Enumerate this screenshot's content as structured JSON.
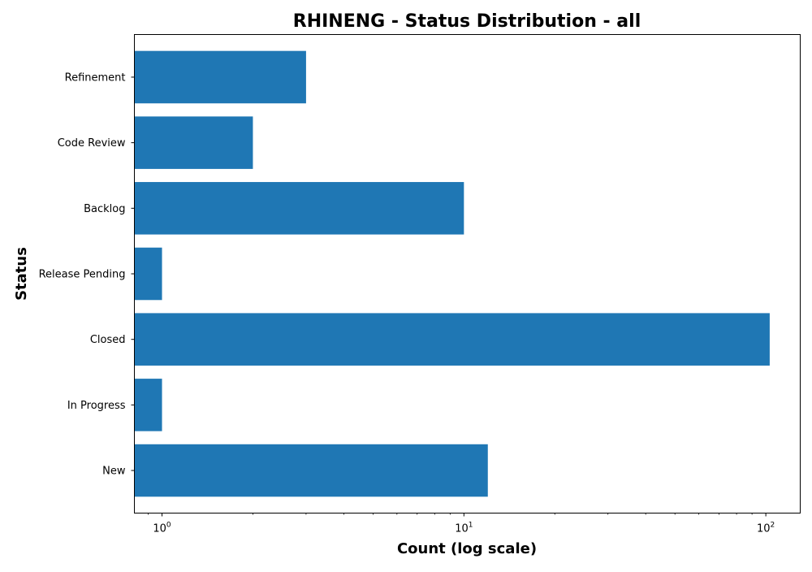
{
  "chart_data": {
    "type": "bar",
    "orientation": "horizontal",
    "title": "RHINENG - Status Distribution - all",
    "xlabel": "Count (log scale)",
    "ylabel": "Status",
    "x_scale": "log",
    "xlim": [
      0.81,
      130
    ],
    "x_ticks": [
      {
        "value": 1,
        "base": "10",
        "exp": "0"
      },
      {
        "value": 10,
        "base": "10",
        "exp": "1"
      },
      {
        "value": 100,
        "base": "10",
        "exp": "2"
      }
    ],
    "categories": [
      "New",
      "In Progress",
      "Closed",
      "Release Pending",
      "Backlog",
      "Code Review",
      "Refinement"
    ],
    "values": [
      12,
      1,
      103,
      1,
      10,
      2,
      3
    ],
    "bar_color": "#1f77b4",
    "grid": false,
    "legend": "none"
  }
}
